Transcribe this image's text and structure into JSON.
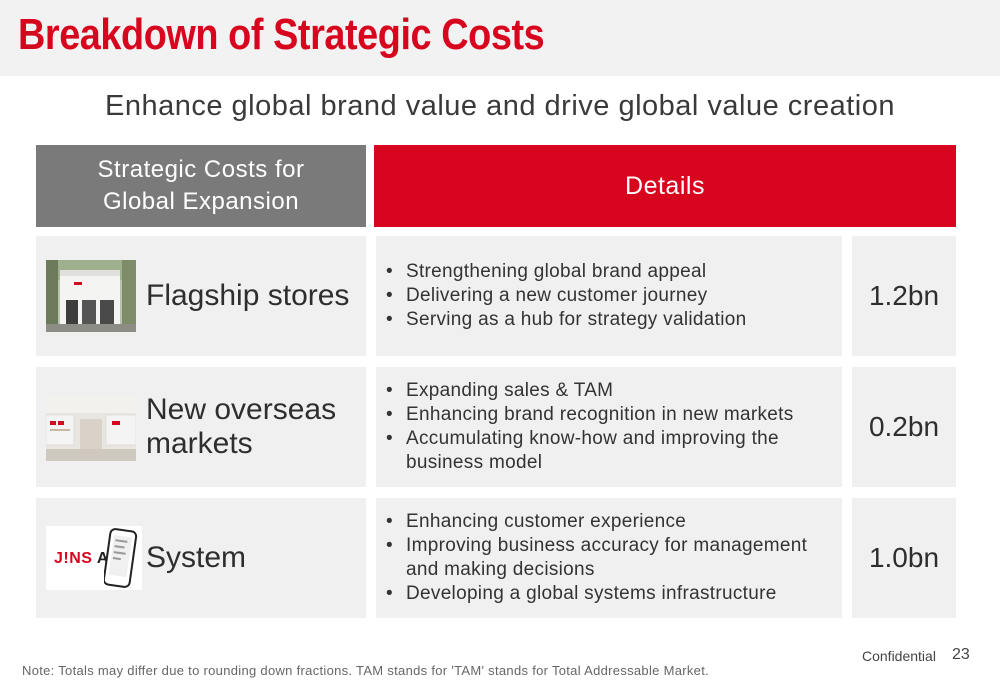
{
  "title": "Breakdown of Strategic Costs",
  "subtitle": "Enhance global brand value and drive global value creation",
  "header": {
    "left_line1": "Strategic Costs for",
    "left_line2": "Global Expansion",
    "right": "Details"
  },
  "rows": [
    {
      "label": "Flagship stores",
      "icon": "storefront-photo",
      "details": [
        "Strengthening global brand appeal",
        "Delivering a new customer journey",
        "Serving as a hub for strategy validation"
      ],
      "amount": "1.2bn"
    },
    {
      "label_line1": "New overseas",
      "label_line2": "markets",
      "icon": "store-interior-photo",
      "details": [
        "Expanding sales & TAM",
        "Enhancing brand recognition in new markets",
        "Accumulating know-how and improving the business model"
      ],
      "amount": "0.2bn"
    },
    {
      "label": "System",
      "icon": "jins-app-phone",
      "logo_text_main": "J!NS",
      "logo_text_suffix": "A!",
      "details": [
        "Enhancing customer experience",
        "Improving business accuracy for management and making decisions",
        "Developing a global systems infrastructure"
      ],
      "amount": "1.0bn"
    }
  ],
  "footer": {
    "confidential": "Confidential",
    "page": "23",
    "note": "Note: Totals may differ due to rounding down fractions. TAM stands for 'TAM' stands for Total Addressable Market."
  },
  "colors": {
    "accent": "#d7061e",
    "header_gray": "#7a7a7a",
    "cell_bg": "#f0f0f0"
  }
}
